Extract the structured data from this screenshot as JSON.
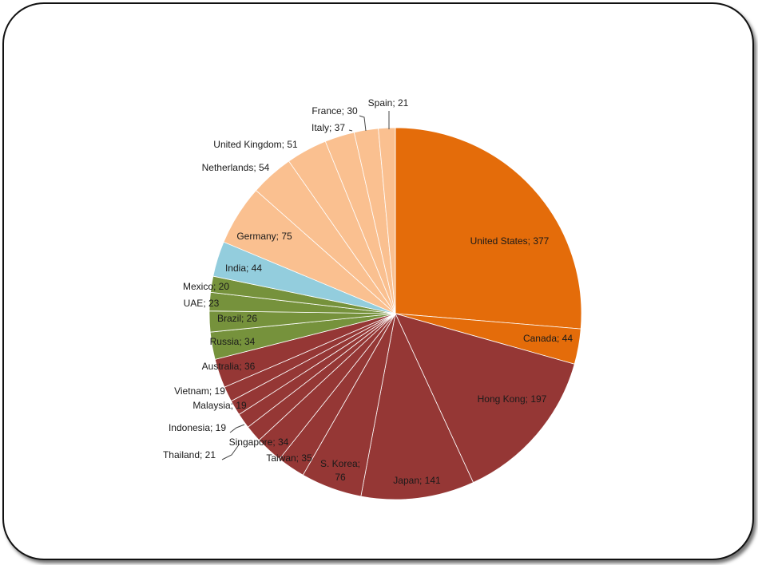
{
  "chart_data": {
    "type": "pie",
    "title": "",
    "start_angle_deg": 0,
    "direction": "clockwise",
    "colors": {
      "north_america": "#e46c0a",
      "asia_pacific": "#953735",
      "latin_russia_mideast": "#76923c",
      "india": "#93cddd",
      "europe": "#fac090"
    },
    "slices": [
      {
        "label": "United States; 377",
        "value": 377,
        "group": "north_america"
      },
      {
        "label": "Canada; 44",
        "value": 44,
        "group": "north_america"
      },
      {
        "label": "Hong Kong; 197",
        "value": 197,
        "group": "asia_pacific"
      },
      {
        "label": "Japan; 141",
        "value": 141,
        "group": "asia_pacific"
      },
      {
        "label": "S. Korea;\n76",
        "value": 76,
        "group": "asia_pacific"
      },
      {
        "label": "Taiwan; 35",
        "value": 35,
        "group": "asia_pacific"
      },
      {
        "label": "Singapore; 34",
        "value": 34,
        "group": "asia_pacific"
      },
      {
        "label": "Thailand; 21",
        "value": 21,
        "group": "asia_pacific"
      },
      {
        "label": "Indonesia; 19",
        "value": 19,
        "group": "asia_pacific"
      },
      {
        "label": "Malaysia; 19",
        "value": 19,
        "group": "asia_pacific"
      },
      {
        "label": "Vietnam; 19",
        "value": 19,
        "group": "asia_pacific"
      },
      {
        "label": "Australia; 36",
        "value": 36,
        "group": "asia_pacific"
      },
      {
        "label": "Russia; 34",
        "value": 34,
        "group": "latin_russia_mideast"
      },
      {
        "label": "Brazil; 26",
        "value": 26,
        "group": "latin_russia_mideast"
      },
      {
        "label": "UAE; 23",
        "value": 23,
        "group": "latin_russia_mideast"
      },
      {
        "label": "Mexico; 20",
        "value": 20,
        "group": "latin_russia_mideast"
      },
      {
        "label": "India; 44",
        "value": 44,
        "group": "india"
      },
      {
        "label": "Germany; 75",
        "value": 75,
        "group": "europe"
      },
      {
        "label": "Netherlands; 54",
        "value": 54,
        "group": "europe"
      },
      {
        "label": "United Kingdom; 51",
        "value": 51,
        "group": "europe"
      },
      {
        "label": "Italy; 37",
        "value": 37,
        "group": "europe"
      },
      {
        "label": "France; 30",
        "value": 30,
        "group": "europe"
      },
      {
        "label": "Spain; 21",
        "value": 21,
        "group": "europe"
      }
    ]
  }
}
